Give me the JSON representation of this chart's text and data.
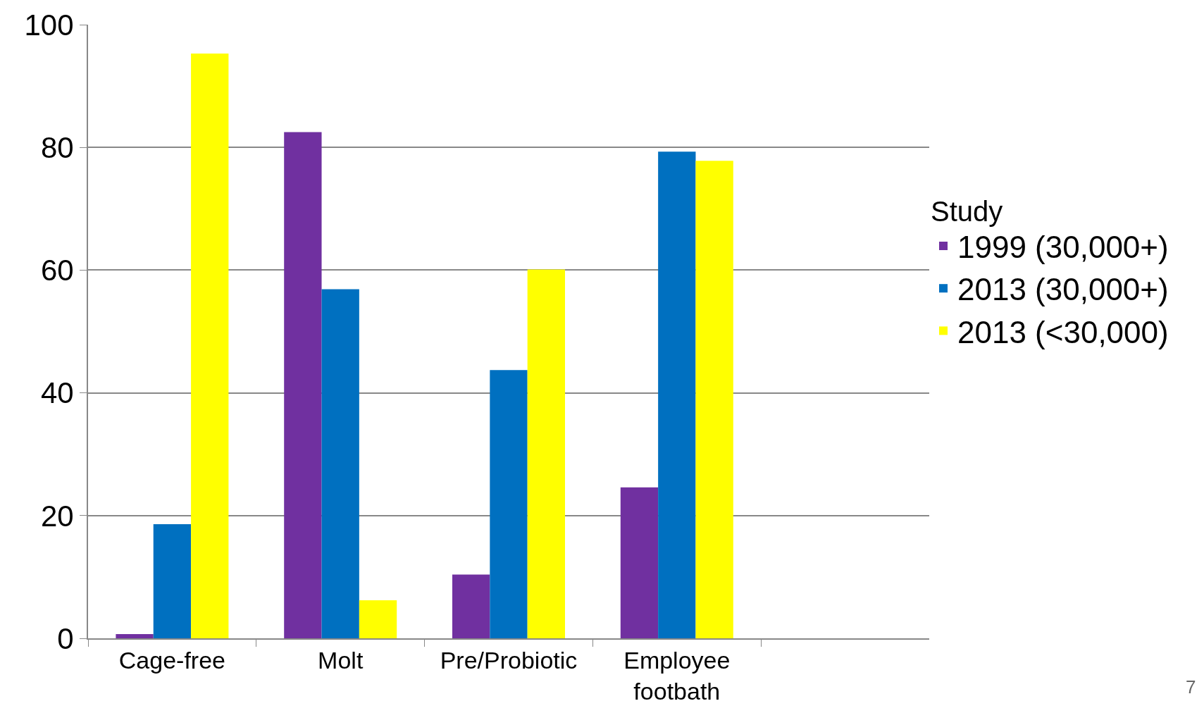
{
  "chart_data": {
    "type": "bar",
    "categories": [
      "Cage-free",
      "Molt",
      "Pre/Probiotic",
      "Employee footbath",
      null
    ],
    "series": [
      {
        "name": "1999 (30,000+)",
        "color": "#7030a0",
        "values": [
          0.7,
          82.5,
          10.4,
          24.6,
          null
        ]
      },
      {
        "name": "2013 (30,000+)",
        "color": "#0070c0",
        "values": [
          18.6,
          56.9,
          43.7,
          79.3,
          null
        ]
      },
      {
        "name": "2013 (<30,000)",
        "color": "#ffff00",
        "values": [
          95.3,
          6.2,
          60.1,
          77.8,
          null
        ]
      }
    ],
    "legend_title": "Study",
    "legend": "right",
    "ylim": [
      0,
      100
    ],
    "yticks": [
      0,
      20,
      40,
      60,
      80,
      100
    ],
    "grid": "y",
    "annotations": [
      "7"
    ]
  }
}
